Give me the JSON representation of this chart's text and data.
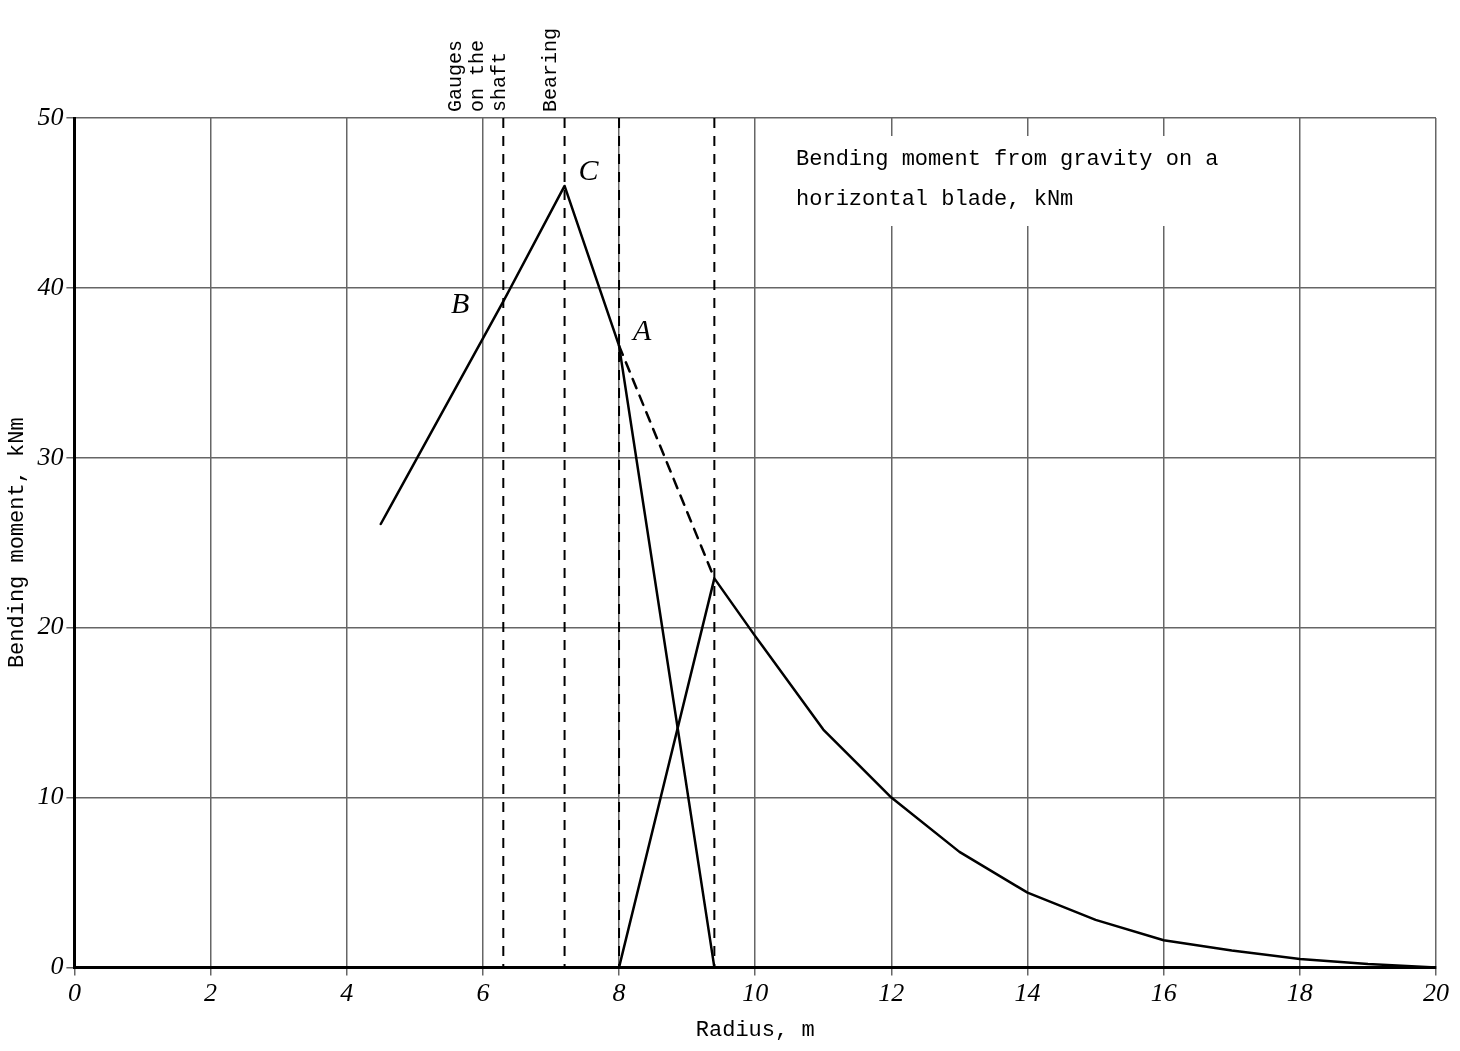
{
  "chart_data": {
    "type": "line",
    "xlabel": "Radius, m",
    "ylabel": "Bending moment, kNm",
    "xlim": [
      0,
      20
    ],
    "xticks": [
      0,
      2,
      4,
      6,
      8,
      10,
      12,
      14,
      16,
      18,
      20
    ],
    "ylim": [
      0,
      50
    ],
    "yticks": [
      0,
      10,
      20,
      30,
      40,
      50
    ],
    "grid": true,
    "legend": false,
    "marker": "none",
    "series": [
      {
        "color": "#000000",
        "x": [
          4.5,
          6.3,
          7.2,
          8.0,
          9.4
        ],
        "values": [
          26.1,
          39.2,
          46.0,
          36.6,
          0
        ]
      },
      {
        "color": "#000000",
        "x": [
          8.0,
          9.4,
          10,
          11,
          12,
          13,
          14,
          15,
          16,
          17,
          18,
          19,
          20
        ],
        "values": [
          0,
          22.9,
          19.5,
          14,
          10,
          6.8,
          4.4,
          2.8,
          1.6,
          1.0,
          0.5,
          0.2,
          0
        ]
      },
      {
        "color": "#000000",
        "x": [
          8.0,
          9.4
        ],
        "values": [
          36.6,
          22.9
        ],
        "line_style": "dashed"
      }
    ],
    "ref_lines": [
      {
        "axis": "x",
        "value": 6.3,
        "label": "Gauges on the shaft",
        "line_style": "dashed"
      },
      {
        "axis": "x",
        "value": 7.2,
        "label": "Bearing",
        "line_style": "dashed"
      },
      {
        "axis": "x",
        "value": 8.0,
        "line_style": "dashed"
      },
      {
        "axis": "x",
        "value": 9.4,
        "line_style": "dashed"
      }
    ],
    "annotations": [
      "Bending moment from gravity on a horizontal blade, kNm",
      {
        "text": "B",
        "x": 6.3,
        "y": 39.2
      },
      {
        "text": "C",
        "x": 7.2,
        "y": 46.0
      },
      {
        "text": "A",
        "x": 8.0,
        "y": 36.6
      }
    ]
  }
}
